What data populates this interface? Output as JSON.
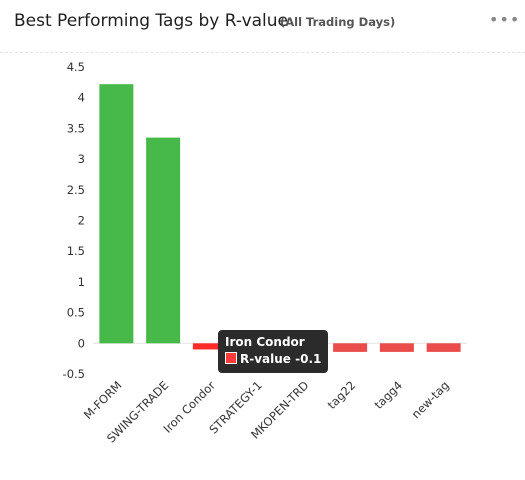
{
  "header": {
    "title": "Best Performing Tags by R-value",
    "subtitle": "(All Trading Days)",
    "more_icon": "more-horizontal-icon"
  },
  "tooltip": {
    "category": "Iron Condor",
    "series": "R-value",
    "value_text": "-0.1"
  },
  "colors": {
    "positive": "#47b84a",
    "negative": "#ea4b4b",
    "highlight": "#ff2a2a",
    "zero_line": "#e4e4e4"
  },
  "chart_data": {
    "type": "bar",
    "categories": [
      "M-FORM",
      "SWING-TRADE",
      "Iron Condor",
      "STRATEGY-1",
      "MKOPEN-TRD",
      "tag22",
      "tagg4",
      "new-tag"
    ],
    "series": [
      {
        "name": "R-value",
        "values": [
          4.22,
          3.35,
          -0.1,
          -0.12,
          -0.13,
          -0.14,
          -0.14,
          -0.14
        ]
      }
    ],
    "ylim": [
      -0.5,
      4.5
    ],
    "yticks": [
      -0.5,
      0,
      0.5,
      1,
      1.5,
      2,
      2.5,
      3,
      3.5,
      4,
      4.5
    ],
    "ytick_labels": [
      "-0.5",
      "0",
      "0.5",
      "1",
      "1.5",
      "2",
      "2.5",
      "3",
      "3.5",
      "4",
      "4.5"
    ],
    "highlighted": "Iron Condor",
    "grid": false,
    "legend": "none"
  }
}
